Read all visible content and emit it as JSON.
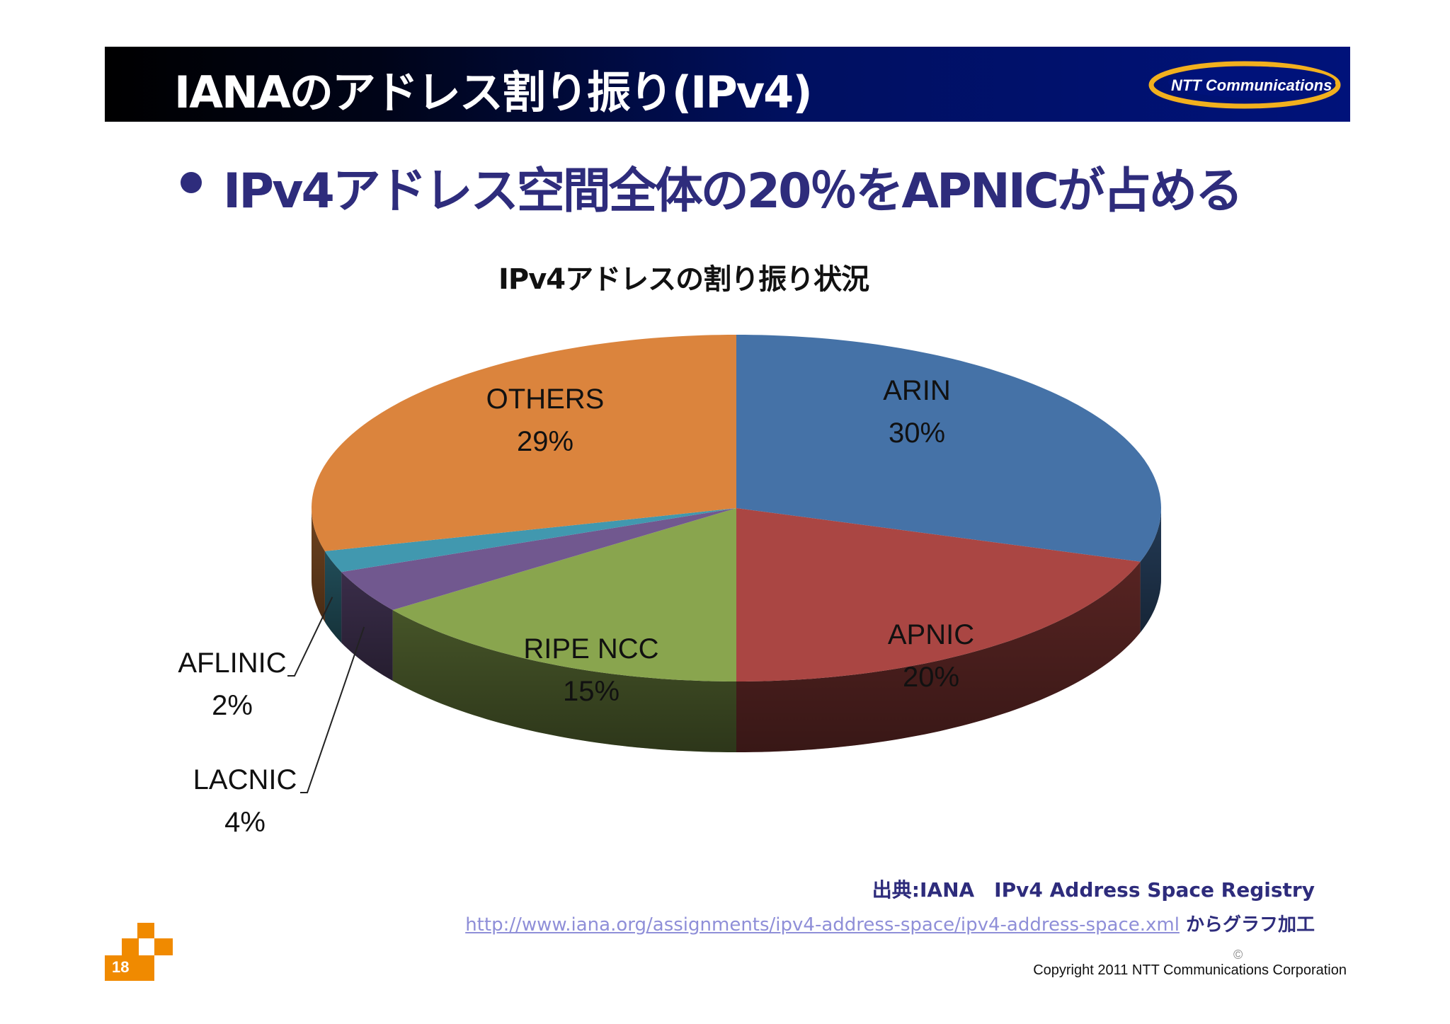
{
  "header": {
    "title": "IANAのアドレス割り振り(IPv4)",
    "logo_text": "NTT Communications"
  },
  "bullet": "IPv4アドレス空間全体の20％をAPNICが占める",
  "chart_data": {
    "type": "pie",
    "title": "IPv4アドレスの割り振り状況",
    "slices": [
      {
        "name": "ARIN",
        "value": 30,
        "value_label": "30%",
        "color": "#4572a7"
      },
      {
        "name": "APNIC",
        "value": 20,
        "value_label": "20%",
        "color": "#aa4643"
      },
      {
        "name": "RIPE NCC",
        "value": 15,
        "value_label": "15%",
        "color": "#89a54e"
      },
      {
        "name": "LACNIC",
        "value": 4,
        "value_label": "4%",
        "color": "#71588f"
      },
      {
        "name": "AFLINIC",
        "value": 2,
        "value_label": "2%",
        "color": "#4198af"
      },
      {
        "name": "OTHERS",
        "value": 29,
        "value_label": "29%",
        "color": "#db843d"
      }
    ],
    "legend": "none",
    "style": "3d-exploded-none"
  },
  "source": {
    "line1": "出典:IANA　IPv4 Address Space Registry",
    "url": "http://www.iana.org/assignments/ipv4-address-space/ipv4-address-space.xml",
    "suffix": " からグラフ加工"
  },
  "footer": {
    "page_number": "18",
    "copyright_symbol": "©",
    "copyright": "Copyright 2011 NTT Communications Corporation"
  }
}
